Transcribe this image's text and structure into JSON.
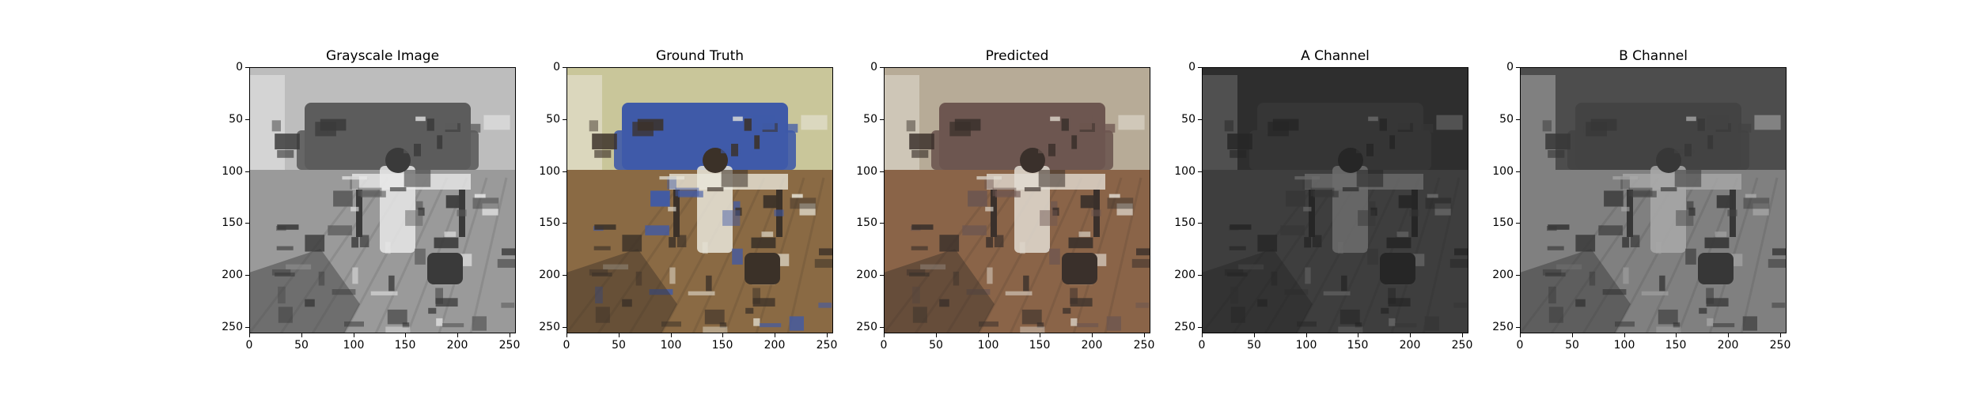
{
  "figure": {
    "panels": [
      {
        "title": "Grayscale Image",
        "variant": "gray",
        "colors": {
          "wall": "#bdbdbd",
          "sofa": "#5c5c5c",
          "floor": "#9a9a9a",
          "clutter": "#3a3a3a",
          "bright": "#e8e8e8"
        }
      },
      {
        "title": "Ground Truth",
        "variant": "color",
        "colors": {
          "wall": "#c9c69a",
          "sofa": "#3f5aa8",
          "floor": "#8a6a44",
          "clutter": "#3b3128",
          "bright": "#e9e6da"
        }
      },
      {
        "title": "Predicted",
        "variant": "color",
        "colors": {
          "wall": "#b7ab97",
          "sofa": "#6d5650",
          "floor": "#8a6448",
          "clutter": "#3a302b",
          "bright": "#e2dcd2"
        }
      },
      {
        "title": "A Channel",
        "variant": "channel",
        "colors": {
          "wall": "#2e2e2e",
          "sofa": "#3b3b3b",
          "floor": "#474747",
          "clutter": "#222222",
          "bright": "#8f8f8f"
        }
      },
      {
        "title": "B Channel",
        "variant": "channel",
        "colors": {
          "wall": "#4e4e4e",
          "sofa": "#3e3e3e",
          "floor": "#9c9c9c",
          "clutter": "#2b2b2b",
          "bright": "#dadada"
        }
      }
    ],
    "x_ticks": [
      "0",
      "50",
      "100",
      "150",
      "200",
      "250"
    ],
    "y_ticks": [
      "0",
      "50",
      "100",
      "150",
      "200",
      "250"
    ],
    "axis_range": [
      0,
      256
    ]
  }
}
